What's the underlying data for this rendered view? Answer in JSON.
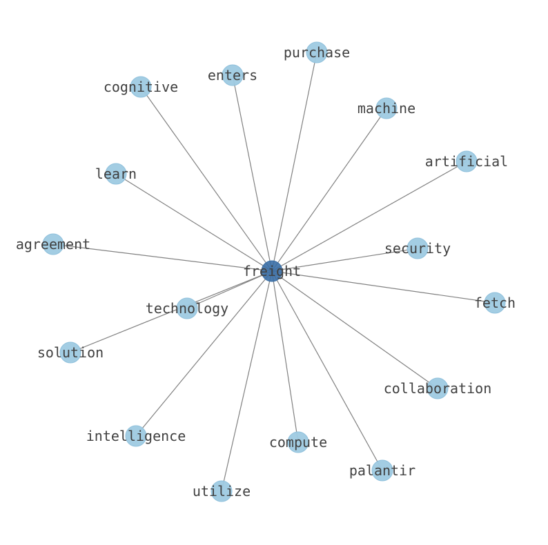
{
  "graph": {
    "center": "freight",
    "colors": {
      "center_node": "#3a6ea5",
      "leaf_node": "#9ecae1",
      "edge": "#808080",
      "label": "#404040"
    },
    "nodes": [
      {
        "label": "freight",
        "role": "center"
      },
      {
        "label": "purchase"
      },
      {
        "label": "enters"
      },
      {
        "label": "cognitive"
      },
      {
        "label": "machine"
      },
      {
        "label": "artificial"
      },
      {
        "label": "learn"
      },
      {
        "label": "agreement"
      },
      {
        "label": "security"
      },
      {
        "label": "technology"
      },
      {
        "label": "fetch"
      },
      {
        "label": "solution"
      },
      {
        "label": "collaboration"
      },
      {
        "label": "intelligence"
      },
      {
        "label": "compute"
      },
      {
        "label": "palantir"
      },
      {
        "label": "utilize"
      }
    ],
    "edges": [
      [
        "freight",
        "purchase"
      ],
      [
        "freight",
        "enters"
      ],
      [
        "freight",
        "cognitive"
      ],
      [
        "freight",
        "machine"
      ],
      [
        "freight",
        "artificial"
      ],
      [
        "freight",
        "learn"
      ],
      [
        "freight",
        "agreement"
      ],
      [
        "freight",
        "security"
      ],
      [
        "freight",
        "technology"
      ],
      [
        "freight",
        "fetch"
      ],
      [
        "freight",
        "solution"
      ],
      [
        "freight",
        "collaboration"
      ],
      [
        "freight",
        "intelligence"
      ],
      [
        "freight",
        "compute"
      ],
      [
        "freight",
        "palantir"
      ],
      [
        "freight",
        "utilize"
      ]
    ]
  }
}
